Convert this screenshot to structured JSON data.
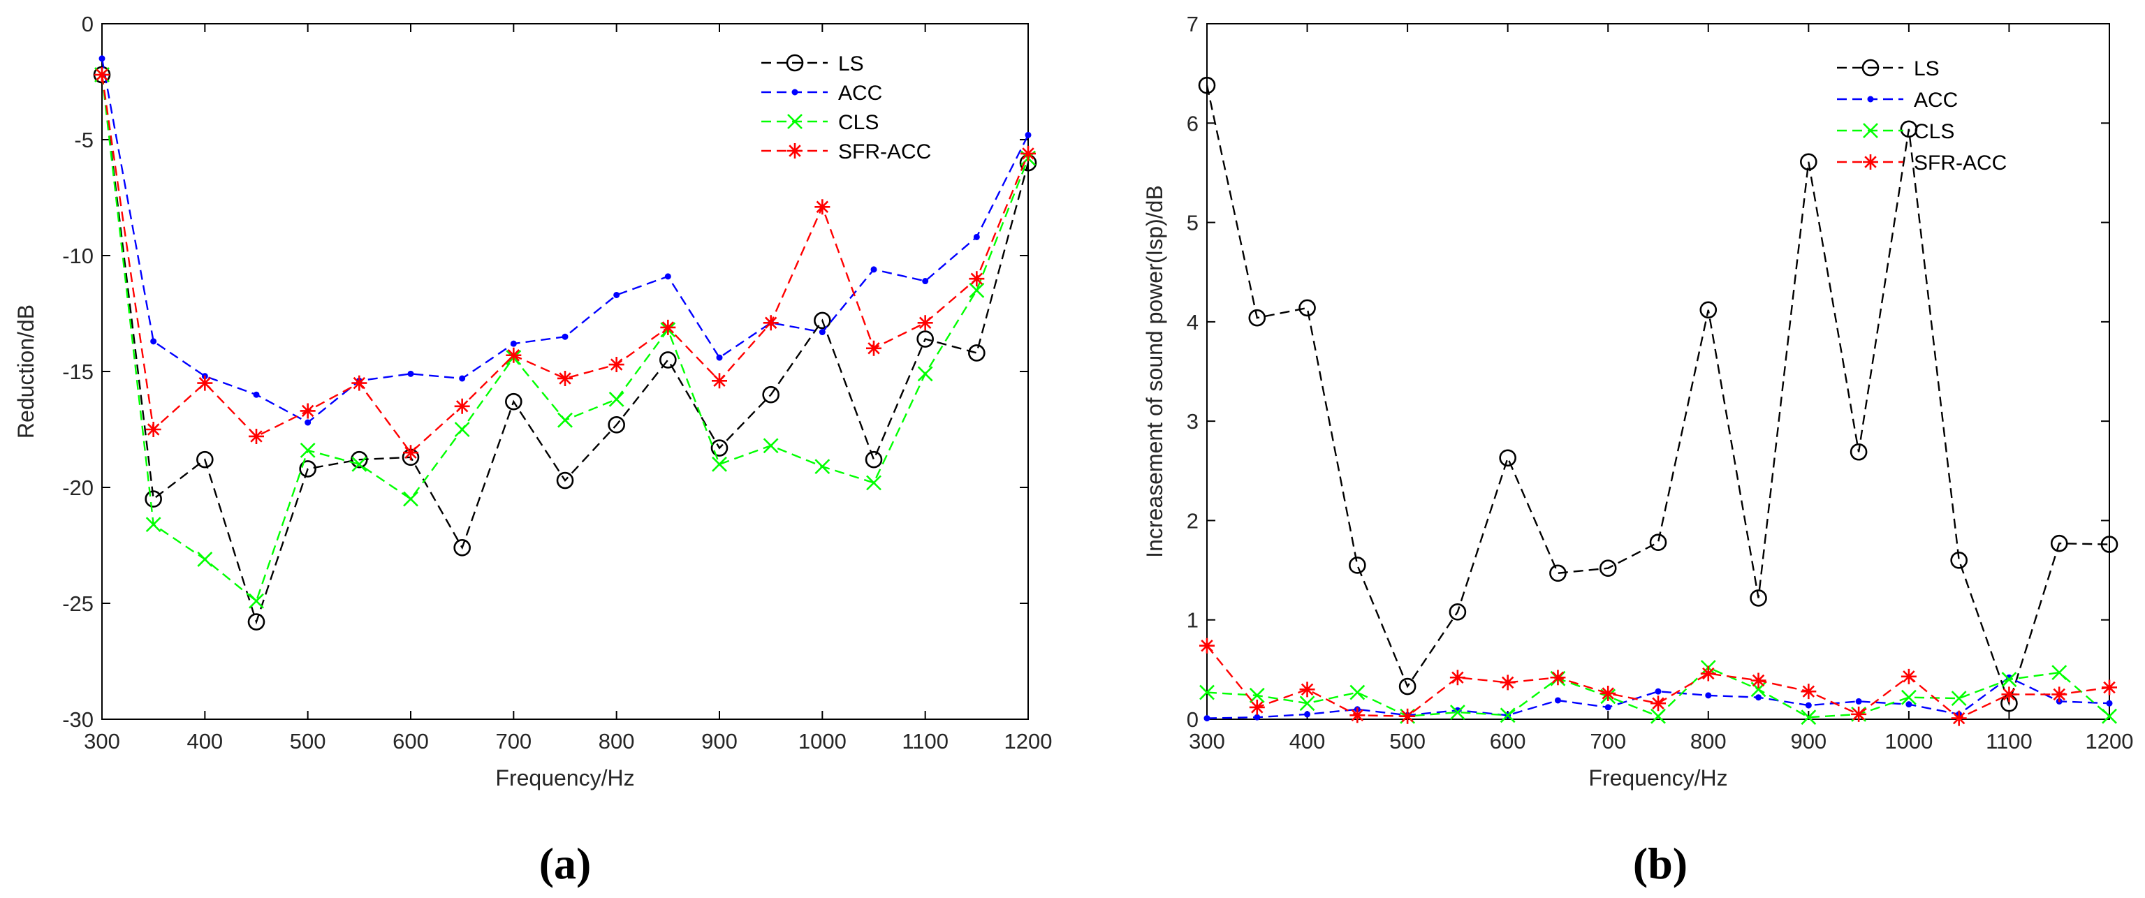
{
  "chart_data": [
    {
      "type": "line",
      "panel_label": "(a)",
      "title": "",
      "xlabel": "Frequency/Hz",
      "ylabel": "Reduction/dB",
      "xlim": [
        300,
        1200
      ],
      "ylim": [
        -30,
        0
      ],
      "xticks": [
        300,
        400,
        500,
        600,
        700,
        800,
        900,
        1000,
        1100,
        1200
      ],
      "yticks": [
        -30,
        -25,
        -20,
        -15,
        -10,
        -5,
        0
      ],
      "xtick_labels": [
        "300",
        "400",
        "500",
        "600",
        "700",
        "800",
        "900",
        "1000",
        "1100",
        "1200"
      ],
      "ytick_labels": [
        "-30",
        "-25",
        "-20",
        "-15",
        "-10",
        "-5",
        "0"
      ],
      "grid": false,
      "legend_position": "top-right",
      "x": [
        300,
        350,
        400,
        450,
        500,
        550,
        600,
        650,
        700,
        750,
        800,
        850,
        900,
        950,
        1000,
        1050,
        1100,
        1150,
        1200
      ],
      "series": [
        {
          "name": "LS",
          "color": "#000000",
          "marker": "circle",
          "values": [
            -2.2,
            -20.5,
            -18.8,
            -25.8,
            -19.2,
            -18.8,
            -18.7,
            -22.6,
            -16.3,
            -19.7,
            -17.3,
            -14.5,
            -18.3,
            -16.0,
            -12.8,
            -18.8,
            -13.6,
            -14.2,
            -6.0
          ]
        },
        {
          "name": "ACC",
          "color": "#0000ff",
          "marker": "dot",
          "values": [
            -1.5,
            -13.7,
            -15.2,
            -16.0,
            -17.2,
            -15.4,
            -15.1,
            -15.3,
            -13.8,
            -13.5,
            -11.7,
            -10.9,
            -14.4,
            -12.9,
            -13.3,
            -10.6,
            -11.1,
            -9.2,
            -4.8
          ]
        },
        {
          "name": "CLS",
          "color": "#00ff00",
          "marker": "x",
          "values": [
            -2.2,
            -21.6,
            -23.1,
            -24.9,
            -18.4,
            -19.0,
            -20.5,
            -17.5,
            -14.4,
            -17.1,
            -16.2,
            -13.2,
            -19.0,
            -18.2,
            -19.1,
            -19.8,
            -15.1,
            -11.5,
            -5.8
          ]
        },
        {
          "name": "SFR-ACC",
          "color": "#ff0000",
          "marker": "star",
          "values": [
            -2.2,
            -17.5,
            -15.5,
            -17.8,
            -16.7,
            -15.5,
            -18.5,
            -16.5,
            -14.3,
            -15.3,
            -14.7,
            -13.1,
            -15.4,
            -12.9,
            -7.9,
            -14.0,
            -12.9,
            -11.0,
            -5.6
          ]
        }
      ]
    },
    {
      "type": "line",
      "panel_label": "(b)",
      "title": "",
      "xlabel": "Frequency/Hz",
      "ylabel": "Increasement of sound power(Isp)/dB",
      "xlim": [
        300,
        1200
      ],
      "ylim": [
        0,
        7
      ],
      "xticks": [
        300,
        400,
        500,
        600,
        700,
        800,
        900,
        1000,
        1100,
        1200
      ],
      "yticks": [
        0,
        1,
        2,
        3,
        4,
        5,
        6,
        7
      ],
      "xtick_labels": [
        "300",
        "400",
        "500",
        "600",
        "700",
        "800",
        "900",
        "1000",
        "1100",
        "1200"
      ],
      "ytick_labels": [
        "0",
        "1",
        "2",
        "3",
        "4",
        "5",
        "6",
        "7"
      ],
      "grid": false,
      "legend_position": "top-right",
      "x": [
        300,
        350,
        400,
        450,
        500,
        550,
        600,
        650,
        700,
        750,
        800,
        850,
        900,
        950,
        1000,
        1050,
        1100,
        1150,
        1200
      ],
      "series": [
        {
          "name": "LS",
          "color": "#000000",
          "marker": "circle",
          "values": [
            6.38,
            4.04,
            4.14,
            1.55,
            0.33,
            1.08,
            2.63,
            1.47,
            1.52,
            1.78,
            4.12,
            1.22,
            5.61,
            2.69,
            5.94,
            1.6,
            0.16,
            1.77,
            1.76
          ]
        },
        {
          "name": "ACC",
          "color": "#0000ff",
          "marker": "dot",
          "values": [
            0.01,
            0.02,
            0.05,
            0.1,
            0.04,
            0.09,
            0.04,
            0.19,
            0.12,
            0.28,
            0.24,
            0.22,
            0.14,
            0.18,
            0.15,
            0.05,
            0.42,
            0.18,
            0.16
          ]
        },
        {
          "name": "CLS",
          "color": "#00ff00",
          "marker": "x",
          "values": [
            0.27,
            0.24,
            0.16,
            0.27,
            0.03,
            0.07,
            0.04,
            0.41,
            0.23,
            0.03,
            0.52,
            0.3,
            0.02,
            0.05,
            0.22,
            0.21,
            0.4,
            0.47,
            0.03
          ]
        },
        {
          "name": "SFR-ACC",
          "color": "#ff0000",
          "marker": "star",
          "values": [
            0.74,
            0.12,
            0.3,
            0.04,
            0.03,
            0.42,
            0.37,
            0.42,
            0.26,
            0.16,
            0.46,
            0.39,
            0.28,
            0.05,
            0.43,
            0.01,
            0.25,
            0.25,
            0.32
          ]
        }
      ]
    }
  ]
}
